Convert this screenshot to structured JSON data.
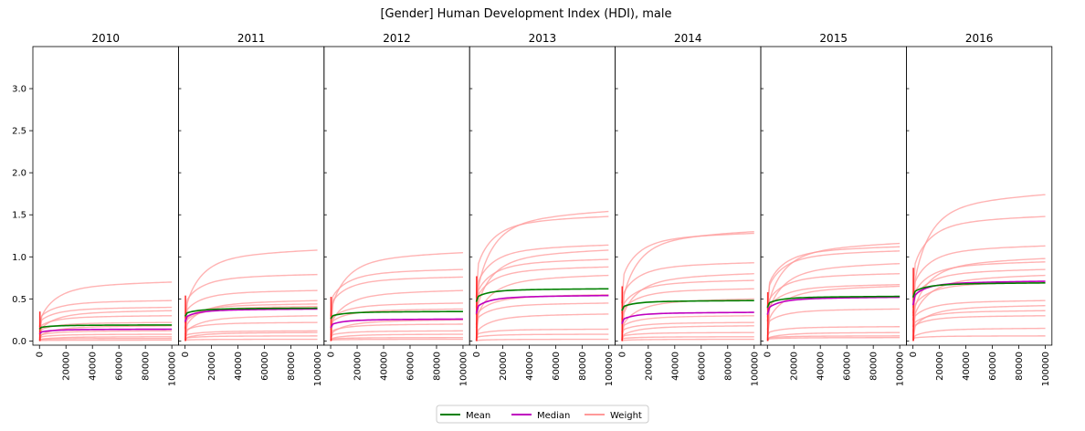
{
  "chart_data": {
    "type": "line",
    "title": "[Gender] Human Development Index (HDI), male",
    "ylim": [
      -0.05,
      3.5
    ],
    "yticks": [
      "0.0",
      "0.5",
      "1.0",
      "1.5",
      "2.0",
      "2.5",
      "3.0"
    ],
    "xlim": [
      -5000,
      105000
    ],
    "xticks": [
      "0",
      "20000",
      "40000",
      "60000",
      "80000",
      "100000"
    ],
    "grid": false,
    "legend": {
      "placement": "bottom-center",
      "entries": [
        "Mean",
        "Median",
        "Weight"
      ]
    },
    "colors": {
      "mean": "#008000",
      "median": "#bf00bf",
      "weight": "#ff9999",
      "spike": "#ff0000"
    },
    "panels": [
      {
        "title": "2010",
        "mean": 0.19,
        "median": 0.14,
        "weights": [
          0.7,
          0.48,
          0.4,
          0.36,
          0.3,
          0.22,
          0.18,
          0.12,
          0.08,
          0.05,
          0.03,
          0.01
        ]
      },
      {
        "title": "2011",
        "mean": 0.39,
        "median": 0.38,
        "weights": [
          1.08,
          0.79,
          0.6,
          0.48,
          0.44,
          0.41,
          0.3,
          0.22,
          0.12,
          0.1,
          0.06,
          0.02
        ]
      },
      {
        "title": "2012",
        "mean": 0.35,
        "median": 0.26,
        "weights": [
          1.05,
          0.85,
          0.76,
          0.6,
          0.45,
          0.38,
          0.25,
          0.2,
          0.12,
          0.08,
          0.04,
          0.02
        ]
      },
      {
        "title": "2013",
        "mean": 0.62,
        "median": 0.54,
        "weights": [
          1.54,
          1.48,
          1.14,
          1.08,
          0.97,
          0.88,
          0.78,
          0.55,
          0.45,
          0.32,
          0.14,
          0.08,
          0.02
        ]
      },
      {
        "title": "2014",
        "mean": 0.48,
        "median": 0.34,
        "weights": [
          1.3,
          1.28,
          0.93,
          0.8,
          0.72,
          0.62,
          0.5,
          0.3,
          0.22,
          0.18,
          0.1,
          0.05,
          0.02
        ]
      },
      {
        "title": "2015",
        "mean": 0.53,
        "median": 0.52,
        "weights": [
          1.16,
          1.12,
          1.07,
          0.92,
          0.8,
          0.67,
          0.65,
          0.38,
          0.17,
          0.1,
          0.06,
          0.04
        ]
      },
      {
        "title": "2016",
        "mean": 0.69,
        "median": 0.71,
        "weights": [
          1.74,
          1.48,
          1.13,
          0.98,
          0.94,
          0.85,
          0.78,
          0.7,
          0.48,
          0.42,
          0.36,
          0.3,
          0.15,
          0.06
        ]
      }
    ]
  }
}
